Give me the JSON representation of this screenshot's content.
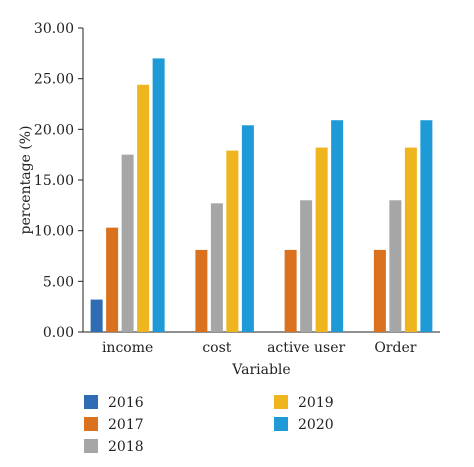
{
  "chart_data": {
    "type": "bar",
    "title": "",
    "xlabel": "Variable",
    "ylabel": "percentage (%)",
    "ylim": [
      0,
      30
    ],
    "yticks": [
      "0.00",
      "5.00",
      "10.00",
      "15.00",
      "20.00",
      "25.00",
      "30.00"
    ],
    "grid": false,
    "legend_position": "bottom",
    "categories": [
      "income",
      "cost",
      "active user",
      "Order"
    ],
    "series": [
      {
        "name": "2016",
        "color": "#2e6db4",
        "values": [
          3.2,
          0,
          0,
          0
        ]
      },
      {
        "name": "2017",
        "color": "#d9711f",
        "values": [
          10.3,
          8.1,
          8.1,
          8.1
        ]
      },
      {
        "name": "2018",
        "color": "#a6a6a6",
        "values": [
          17.5,
          12.7,
          13.0,
          13.0
        ]
      },
      {
        "name": "2019",
        "color": "#eeb51f",
        "values": [
          24.4,
          17.9,
          18.2,
          18.2
        ]
      },
      {
        "name": "2020",
        "color": "#1e9ad6",
        "values": [
          27.0,
          20.4,
          20.9,
          20.9
        ]
      }
    ]
  }
}
